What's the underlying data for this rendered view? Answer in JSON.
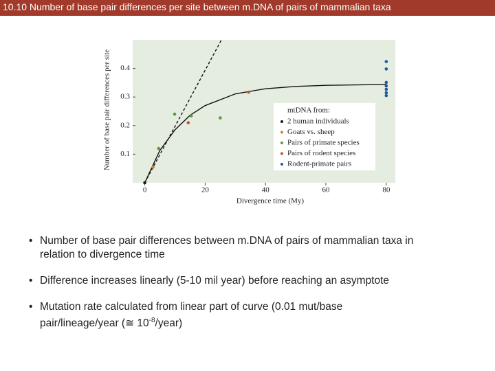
{
  "header": {
    "title": "10.10  Number of base pair differences per site between m.DNA of pairs of mammalian taxa"
  },
  "chart_data": {
    "type": "scatter",
    "y_label": "Number of base pair differences per site",
    "x_label": "Divergence time (My)",
    "xlim": [
      -4,
      83
    ],
    "ylim": [
      0,
      0.5
    ],
    "xticks": [
      0,
      20,
      40,
      60,
      80
    ],
    "yticks": [
      0.1,
      0.2,
      0.3,
      0.4
    ],
    "grid": false,
    "legend_title": "mtDNA from:",
    "legend": "right",
    "series": [
      {
        "name": "2 human individuals",
        "color": "#1a1a1a",
        "x": [
          0
        ],
        "values": [
          0
        ]
      },
      {
        "name": "Goats vs. sheep",
        "color": "#c8873a",
        "x": [
          2.75
        ],
        "values": [
          0.054
        ]
      },
      {
        "name": "Pairs of primate species",
        "color": "#5a9a3a",
        "x": [
          4.6,
          9.9,
          15.4,
          25
        ],
        "values": [
          0.12,
          0.24,
          0.234,
          0.227
        ]
      },
      {
        "name": "Pairs of rodent species",
        "color": "#c8502a",
        "x": [
          14.4,
          34.4
        ],
        "values": [
          0.21,
          0.317
        ]
      },
      {
        "name": "Rodent-primate pairs",
        "color": "#1e5a9a",
        "x": [
          80,
          80,
          80,
          80,
          80,
          80,
          80
        ],
        "values": [
          0.424,
          0.398,
          0.351,
          0.339,
          0.327,
          0.315,
          0.305
        ]
      }
    ],
    "lines": [
      {
        "style": "dashed",
        "x": [
          0,
          25.4
        ],
        "values": [
          0,
          0.5
        ]
      },
      {
        "style": "solid",
        "x": [
          0,
          5,
          10,
          15,
          20,
          30,
          40,
          50,
          60,
          80
        ],
        "values": [
          0,
          0.113,
          0.185,
          0.236,
          0.27,
          0.311,
          0.329,
          0.337,
          0.341,
          0.344
        ]
      }
    ]
  },
  "bullets": [
    [
      "Number of base pair differences between m.DNA of pairs of mammalian taxa in relation to divergence time"
    ],
    [
      "Difference increases linearly (5-10 mil year) before reaching an asymptote"
    ],
    [
      "Mutation rate calculated from linear part of curve (0.01 mut/base pair/lineage/year (≅ 10",
      "-8",
      "/year)"
    ]
  ]
}
